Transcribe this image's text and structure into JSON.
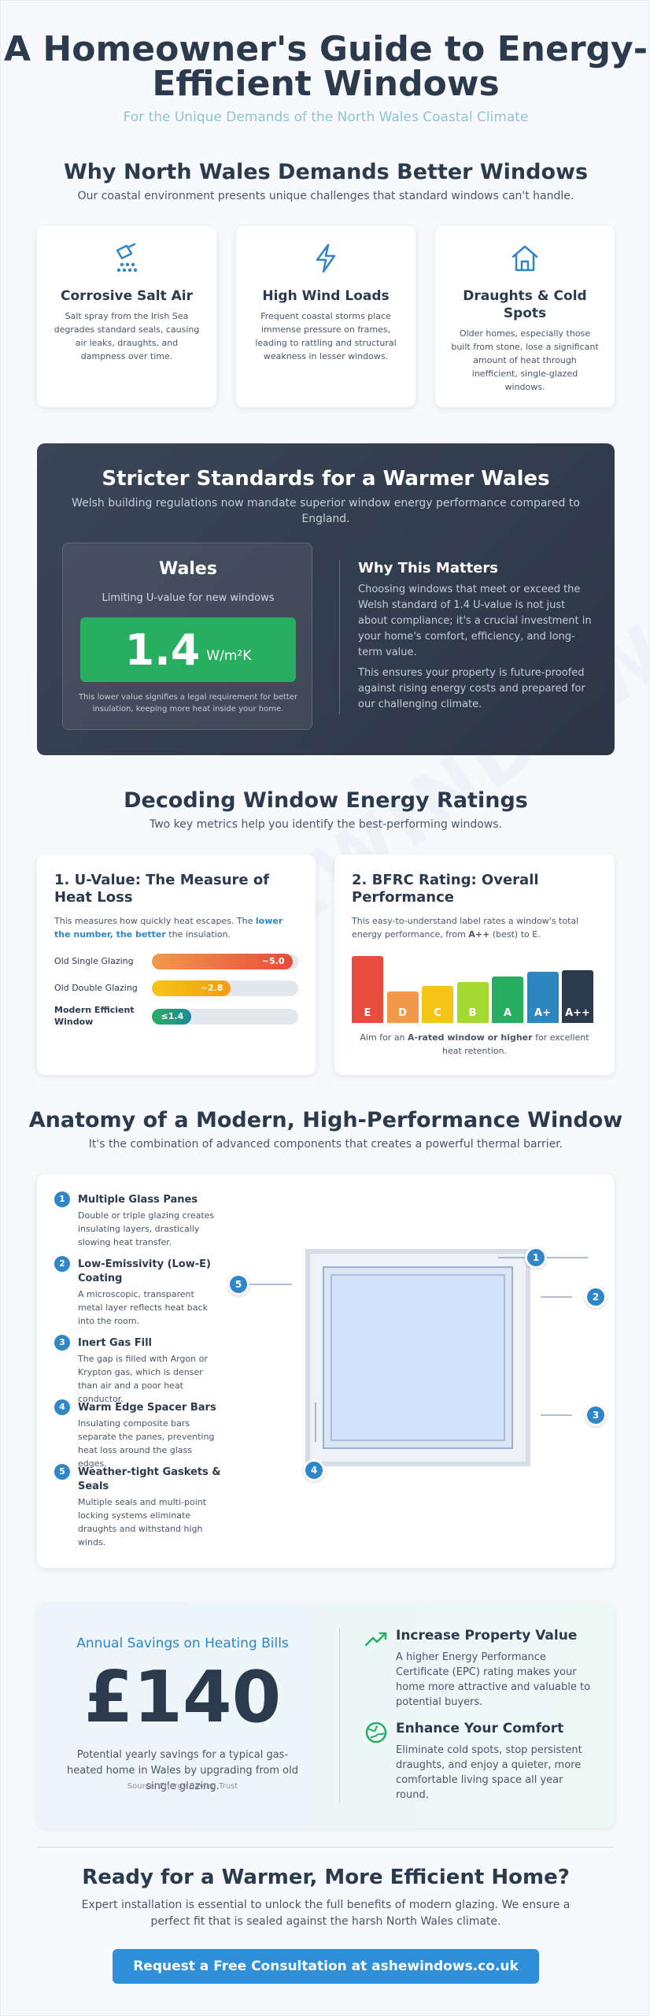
{
  "header": {
    "title": "A Homeowner's Guide to Energy-Efficient Windows",
    "subtitle": "For the Unique Demands of the North Wales Coastal Climate"
  },
  "watermark": "ASHEWINDOWS.CO.UK",
  "why": {
    "title": "Why North Wales Demands Better Windows",
    "subtitle": "Our coastal environment presents unique challenges that standard windows can't handle.",
    "cards": [
      {
        "icon": "salt-spray-icon",
        "title": "Corrosive Salt Air",
        "text": "Salt spray from the Irish Sea degrades standard seals, causing air leaks, draughts, and dampness over time."
      },
      {
        "icon": "lightning-icon",
        "title": "High Wind Loads",
        "text": "Frequent coastal storms place immense pressure on frames, leading to rattling and structural weakness in lesser windows."
      },
      {
        "icon": "house-icon",
        "title": "Draughts & Cold Spots",
        "text": "Older homes, especially those built from stone, lose a significant amount of heat through inefficient, single-glazed windows."
      }
    ]
  },
  "standards": {
    "title": "Stricter Standards for a Warmer Wales",
    "subtitle": "Welsh building regulations now mandate superior window energy performance compared to England.",
    "wales_title": "Wales",
    "wales_label": "Limiting U-value for new windows",
    "value": "1.4",
    "unit": "W/m²K",
    "note": "This lower value signifies a legal requirement for better insulation, keeping more heat inside your home.",
    "why_title": "Why This Matters",
    "why_p1": "Choosing windows that meet or exceed the Welsh standard of 1.4 U-value is not just about compliance; it's a crucial investment in your home's comfort, efficiency, and long-term value.",
    "why_p2": "This ensures your property is future-proofed against rising energy costs and prepared for our challenging climate."
  },
  "ratings": {
    "title": "Decoding Window Energy Ratings",
    "subtitle": "Two key metrics help you identify the best-performing windows.",
    "uvalue": {
      "title": "1. U-Value: The Measure of Heat Loss",
      "desc_a": "This measures how quickly heat escapes. The ",
      "desc_b": "lower the number, the better",
      "desc_c": " the insulation.",
      "bars": [
        {
          "label": "Old Single Glazing",
          "value_text": "~5.0",
          "fraction": 0.96,
          "color_from": "#f2994a",
          "color_to": "#e74c3c",
          "bold": false
        },
        {
          "label": "Old Double Glazing",
          "value_text": "~2.8",
          "fraction": 0.54,
          "color_from": "#f5c518",
          "color_to": "#f39c12",
          "bold": false
        },
        {
          "label": "Modern Efficient Window",
          "value_text": "≤1.4",
          "fraction": 0.27,
          "color_from": "#27ae60",
          "color_to": "#1f8a9a",
          "bold": true
        }
      ]
    },
    "bfrc": {
      "title": "2. BFRC Rating: Overall Performance",
      "desc_a": "This easy-to-understand label rates a window's total energy performance, from ",
      "desc_b": "A++",
      "desc_c": " (best) to E.",
      "bars": [
        {
          "label": "E",
          "level": 0.95,
          "color": "#e74c3c"
        },
        {
          "label": "D",
          "level": 0.45,
          "color": "#f2994a"
        },
        {
          "label": "C",
          "level": 0.52,
          "color": "#f5c518"
        },
        {
          "label": "B",
          "level": 0.58,
          "color": "#a3d930"
        },
        {
          "label": "A",
          "level": 0.66,
          "color": "#27ae60"
        },
        {
          "label": "A+",
          "level": 0.72,
          "color": "#2e86c1"
        },
        {
          "label": "A++",
          "level": 0.74,
          "color": "#2c3a4d"
        }
      ],
      "note_a": "Aim for an ",
      "note_b": "A-rated window or higher",
      "note_c": " for excellent heat retention."
    }
  },
  "anatomy": {
    "title": "Anatomy of a Modern, High-Performance Window",
    "subtitle": "It's the combination of advanced components that creates a powerful thermal barrier.",
    "items": [
      {
        "num": "1",
        "title": "Multiple Glass Panes",
        "text": "Double or triple glazing creates insulating layers, drastically slowing heat transfer."
      },
      {
        "num": "2",
        "title": "Low-Emissivity (Low-E) Coating",
        "text": "A microscopic, transparent metal layer reflects heat back into the room."
      },
      {
        "num": "3",
        "title": "Inert Gas Fill",
        "text": "The gap is filled with Argon or Krypton gas, which is denser than air and a poor heat conductor."
      },
      {
        "num": "4",
        "title": "Warm Edge Spacer Bars",
        "text": "Insulating composite bars separate the panes, preventing heat loss around the glass edges."
      },
      {
        "num": "5",
        "title": "Weather-tight Gaskets & Seals",
        "text": "Multiple seals and multi-point locking systems eliminate draughts and withstand high winds."
      }
    ]
  },
  "savings": {
    "label": "Annual Savings on Heating Bills",
    "amount": "£140",
    "desc": "Potential yearly savings for a typical gas-heated home in Wales by upgrading from old single glazing.",
    "source": "Source: Energy Saving Trust",
    "benefits": [
      {
        "icon": "trending-up-icon",
        "title": "Increase Property Value",
        "text": "A higher Energy Performance Certificate (EPC) rating makes your home more attractive and valuable to potential buyers."
      },
      {
        "icon": "globe-icon",
        "title": "Enhance Your Comfort",
        "text": "Eliminate cold spots, stop persistent draughts, and enjoy a quieter, more comfortable living space all year round."
      }
    ]
  },
  "cta": {
    "title": "Ready for a Warmer, More Efficient Home?",
    "text": "Expert installation is essential to unlock the full benefits of modern glazing. We ensure a perfect fit that is sealed against the harsh North Wales climate.",
    "button": "Request a Free Consultation at ashewindows.co.uk"
  }
}
